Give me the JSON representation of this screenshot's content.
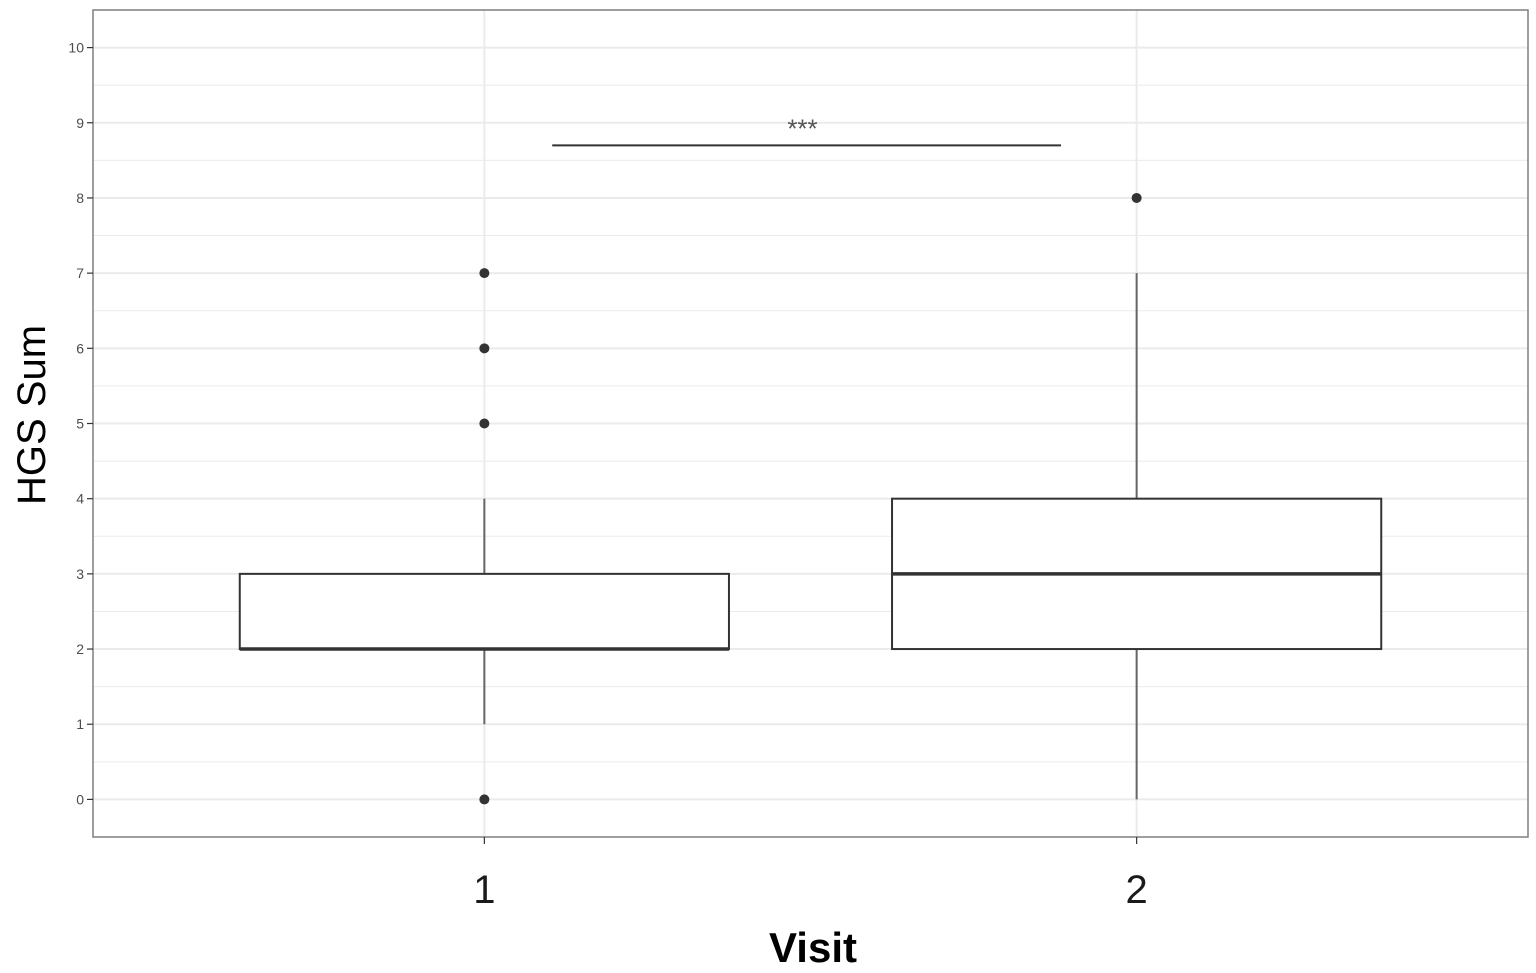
{
  "chart_data": {
    "type": "boxplot",
    "xlabel": "Visit",
    "ylabel": "HGS Sum",
    "categories": [
      "1",
      "2"
    ],
    "ylim": [
      -0.5,
      10.5
    ],
    "yticks": [
      0,
      1,
      2,
      3,
      4,
      5,
      6,
      7,
      8,
      9,
      10
    ],
    "grid": true,
    "boxes": [
      {
        "category": "1",
        "whisker_low": 1,
        "q1": 2,
        "median": 2,
        "q3": 3,
        "whisker_high": 4,
        "outliers": [
          0,
          5,
          6,
          7
        ]
      },
      {
        "category": "2",
        "whisker_low": 0,
        "q1": 2,
        "median": 3,
        "q3": 4,
        "whisker_high": 7,
        "outliers": [
          8
        ]
      }
    ],
    "significance": {
      "label": "***",
      "from": "1",
      "to": "2",
      "y": 8.7
    },
    "colors": {
      "box_fill": "#ffffff",
      "box_stroke": "#333333",
      "grid": "#ebebeb",
      "panel_border": "#7f7f7f"
    }
  }
}
